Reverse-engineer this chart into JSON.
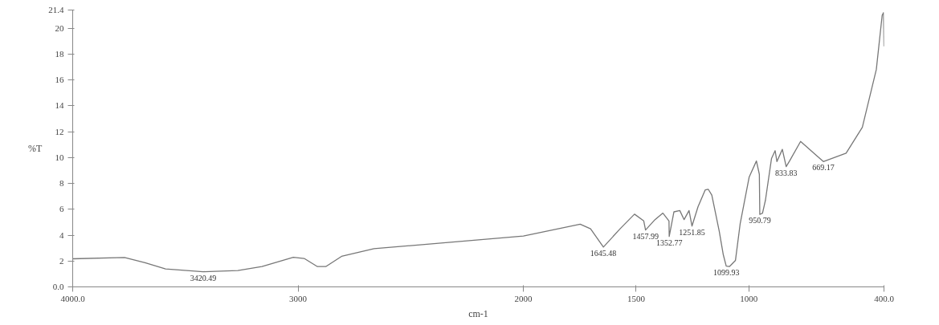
{
  "chart_data": {
    "type": "line",
    "xlabel": "cm-1",
    "ylabel": "%T",
    "xlim": [
      4000,
      400
    ],
    "xticks": [
      {
        "value": 4000,
        "label": "4000.0"
      },
      3000,
      2000,
      1500,
      1000,
      {
        "value": 400,
        "label": "400.0"
      }
    ],
    "ylim": [
      0,
      21.4
    ],
    "yticks": [
      {
        "value": 0,
        "label": "0.0"
      },
      2,
      4,
      6,
      8,
      10,
      12,
      14,
      16,
      18,
      20,
      21.4
    ],
    "grid": false,
    "marker": "none",
    "line_style": "solid",
    "series": [
      {
        "color": "#777777",
        "x": [
          4000,
          3770,
          3679,
          3588,
          3422,
          3267,
          3160,
          3021,
          2973,
          2914,
          2877,
          2807,
          2663,
          2449,
          2000,
          1748,
          1702,
          1645,
          1571,
          1507,
          1466,
          1458,
          1416,
          1381,
          1354,
          1353,
          1332,
          1306,
          1287,
          1265,
          1252,
          1225,
          1193,
          1180,
          1164,
          1131,
          1113,
          1100,
          1086,
          1059,
          1038,
          998,
          966,
          953,
          951,
          939,
          926,
          899,
          883,
          875,
          851,
          834,
          819,
          770,
          669,
          568,
          496,
          434,
          408,
          402,
          400
        ],
        "values": [
          2.17,
          2.27,
          1.87,
          1.39,
          1.17,
          1.27,
          1.57,
          2.29,
          2.2,
          1.57,
          1.57,
          2.36,
          2.96,
          3.26,
          3.93,
          4.85,
          4.49,
          3.08,
          4.49,
          5.62,
          5.1,
          4.4,
          5.2,
          5.7,
          5.1,
          3.9,
          5.8,
          5.9,
          5.2,
          5.9,
          4.7,
          6.2,
          7.5,
          7.55,
          7.1,
          4.3,
          2.48,
          1.6,
          1.57,
          2.05,
          4.9,
          8.5,
          9.73,
          8.7,
          5.6,
          5.7,
          6.7,
          9.93,
          10.53,
          9.69,
          10.63,
          9.3,
          9.73,
          11.24,
          9.69,
          10.33,
          12.34,
          16.8,
          21.0,
          21.2,
          18.6
        ]
      }
    ],
    "annotations": [
      {
        "text": "3420.49",
        "x": 3420.49,
        "y": 1.17
      },
      {
        "text": "1645.48",
        "x": 1645.48,
        "y": 3.08
      },
      {
        "text": "1457.99",
        "x": 1457.99,
        "y": 4.4
      },
      {
        "text": "1352.77",
        "x": 1352.77,
        "y": 3.9
      },
      {
        "text": "1251.85",
        "x": 1251.85,
        "y": 4.7
      },
      {
        "text": "1099.93",
        "x": 1099.93,
        "y": 1.6
      },
      {
        "text": "950.79",
        "x": 950.79,
        "y": 5.6
      },
      {
        "text": "833.83",
        "x": 833.83,
        "y": 9.3
      },
      {
        "text": "669.17",
        "x": 669.17,
        "y": 9.69
      }
    ]
  }
}
